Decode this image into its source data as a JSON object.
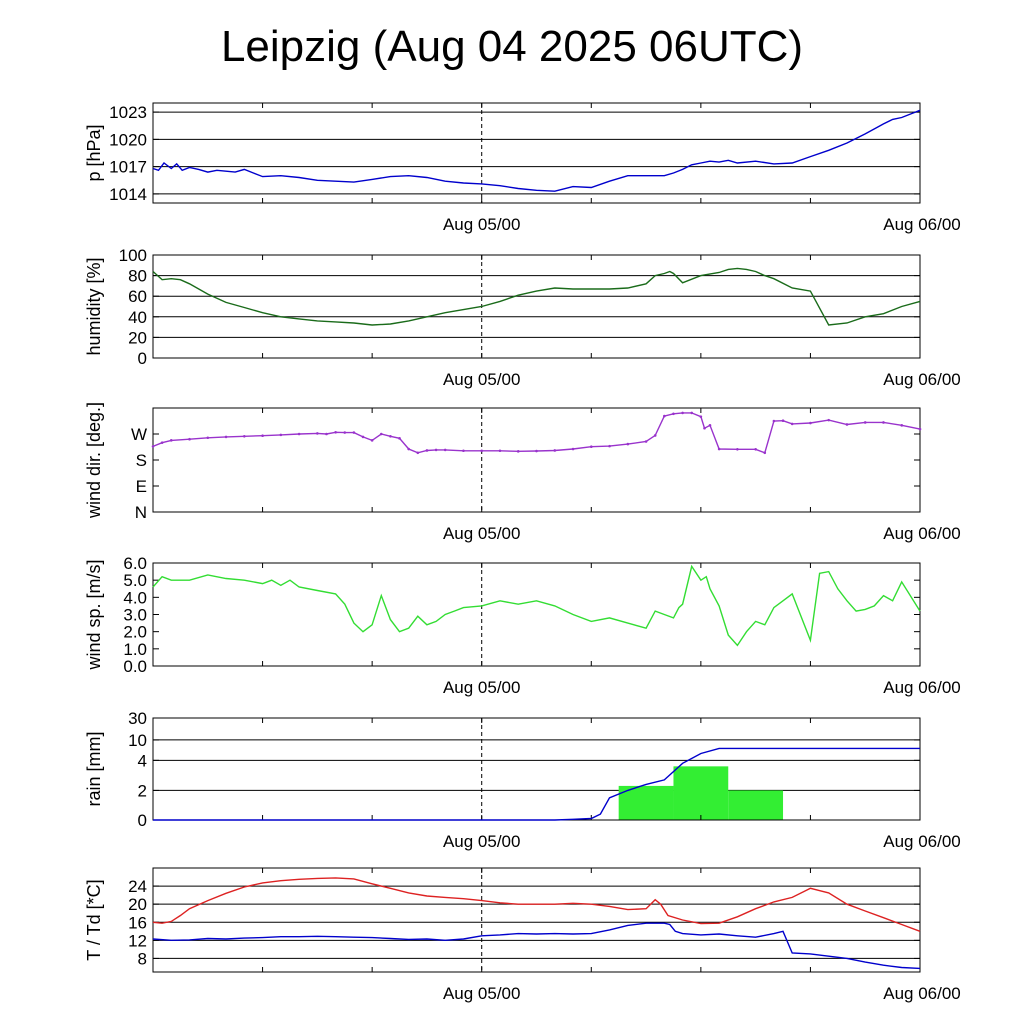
{
  "title": "Leipzig (Aug 04 2025 06UTC)",
  "x_tick_labels": [
    "Aug 05/00",
    "Aug 06/00"
  ],
  "chart_data": [
    {
      "type": "line",
      "id": "pressure",
      "ylabel": "p [hPa]",
      "x_unit": "hours since Aug 04 2025 06UTC",
      "xlim": [
        0,
        42
      ],
      "ylim": [
        1013,
        1024
      ],
      "yticks": [
        1014,
        1017,
        1020,
        1023
      ],
      "ytick_labels": [
        "1014",
        "1017",
        "1020",
        "1023"
      ],
      "grid": true,
      "color": "#0000cc",
      "series": [
        {
          "x": [
            0,
            0.3,
            0.6,
            1.0,
            1.3,
            1.6,
            2.0,
            2.5,
            3,
            3.5,
            4,
            4.5,
            5,
            5.5,
            6,
            7,
            8,
            9,
            10,
            11,
            12,
            13,
            14,
            15,
            16,
            17,
            18,
            19,
            20,
            21,
            22,
            23,
            24,
            25,
            26,
            27,
            28,
            28.5,
            29,
            29.5,
            30,
            30.5,
            31,
            31.5,
            32,
            33,
            34,
            35,
            36,
            37,
            38,
            39,
            40,
            40.5,
            41,
            41.5,
            42
          ],
          "y": [
            1016.8,
            1016.6,
            1017.4,
            1016.8,
            1017.3,
            1016.6,
            1016.9,
            1016.7,
            1016.4,
            1016.6,
            1016.5,
            1016.4,
            1016.7,
            1016.3,
            1015.9,
            1016.0,
            1015.8,
            1015.5,
            1015.4,
            1015.3,
            1015.6,
            1015.9,
            1016.0,
            1015.8,
            1015.4,
            1015.2,
            1015.1,
            1014.9,
            1014.6,
            1014.4,
            1014.3,
            1014.8,
            1014.7,
            1015.4,
            1016.0,
            1016.0,
            1016.0,
            1016.3,
            1016.7,
            1017.2,
            1017.4,
            1017.6,
            1017.5,
            1017.7,
            1017.4,
            1017.6,
            1017.3,
            1017.4,
            1018.1,
            1018.8,
            1019.6,
            1020.6,
            1021.7,
            1022.2,
            1022.4,
            1022.8,
            1023.2
          ]
        }
      ]
    },
    {
      "type": "line",
      "id": "humidity",
      "ylabel": "humidity [%]",
      "x_unit": "hours since Aug 04 2025 06UTC",
      "xlim": [
        0,
        42
      ],
      "ylim": [
        0,
        100
      ],
      "yticks": [
        0,
        20,
        40,
        60,
        80,
        100
      ],
      "ytick_labels": [
        "0",
        "20",
        "40",
        "60",
        "80",
        "100"
      ],
      "grid": true,
      "color": "#1a6b1a",
      "series": [
        {
          "x": [
            0,
            0.5,
            1,
            1.5,
            2,
            3,
            4,
            5,
            6,
            7,
            8,
            9,
            10,
            11,
            12,
            13,
            14,
            15,
            16,
            17,
            18,
            19,
            20,
            21,
            22,
            23,
            24,
            25,
            26,
            27,
            27.5,
            28,
            28.3,
            28.5,
            29,
            30,
            31,
            31.5,
            32,
            32.5,
            33,
            33.5,
            34,
            35,
            36,
            37,
            38,
            39,
            40,
            41,
            42
          ],
          "y": [
            84,
            76,
            77,
            76,
            72,
            62,
            54,
            49,
            44,
            40,
            38,
            36,
            35,
            34,
            32,
            33,
            36,
            40,
            44,
            47,
            50,
            55,
            61,
            65,
            68,
            67,
            67,
            67,
            68,
            72,
            80,
            82,
            84,
            82,
            73,
            80,
            83,
            86,
            87,
            86,
            84,
            80,
            77,
            68,
            65,
            32,
            34,
            40,
            43,
            50,
            55
          ]
        }
      ]
    },
    {
      "type": "scatter",
      "id": "wind_direction",
      "ylabel": "wind dir. [deg.]",
      "x_unit": "hours since Aug 04 2025 06UTC",
      "xlim": [
        0,
        42
      ],
      "ylim": [
        0,
        360
      ],
      "yticks": [
        0,
        90,
        180,
        270
      ],
      "ytick_labels": [
        "N",
        "E",
        "S",
        "W"
      ],
      "grid": false,
      "color": "#9933cc",
      "series": [
        {
          "x": [
            0,
            0.5,
            1,
            2,
            3,
            4,
            5,
            6,
            7,
            8,
            9,
            9.5,
            10,
            10.5,
            11,
            11.5,
            12,
            12.5,
            13,
            13.5,
            14,
            14.5,
            15,
            15.5,
            16,
            17,
            18,
            19,
            20,
            21,
            22,
            23,
            24,
            25,
            26,
            27,
            27.5,
            28,
            28.5,
            29,
            29.5,
            30,
            30.2,
            30.5,
            31,
            32,
            33,
            33.5,
            34,
            34.5,
            35,
            36,
            37,
            38,
            39,
            40,
            41,
            42
          ],
          "y": [
            227,
            240,
            248,
            252,
            257,
            260,
            262,
            264,
            267,
            270,
            272,
            270,
            276,
            275,
            275,
            260,
            248,
            270,
            262,
            255,
            218,
            205,
            213,
            215,
            215,
            212,
            212,
            212,
            210,
            211,
            213,
            218,
            226,
            228,
            235,
            244,
            265,
            332,
            340,
            343,
            343,
            330,
            290,
            300,
            218,
            217,
            217,
            205,
            315,
            316,
            305,
            308,
            318,
            303,
            310,
            310,
            300,
            287
          ]
        }
      ]
    },
    {
      "type": "line",
      "id": "wind_speed",
      "ylabel": "wind sp. [m/s]",
      "x_unit": "hours since Aug 04 2025 06UTC",
      "xlim": [
        0,
        42
      ],
      "ylim": [
        0,
        6
      ],
      "yticks": [
        0,
        1,
        2,
        3,
        4,
        5,
        6
      ],
      "ytick_labels": [
        "0.0",
        "1.0",
        "2.0",
        "3.0",
        "4.0",
        "5.0",
        "6.0"
      ],
      "grid": false,
      "color": "#33dd33",
      "series": [
        {
          "x": [
            0,
            0.5,
            1,
            2,
            3,
            4,
            5,
            6,
            6.5,
            7,
            7.5,
            8,
            9,
            10,
            10.5,
            11,
            11.5,
            12,
            12.5,
            13,
            13.5,
            14,
            14.5,
            15,
            15.5,
            16,
            16.5,
            17,
            18,
            19,
            20,
            21,
            22,
            23,
            24,
            25,
            26,
            27,
            27.5,
            28,
            28.5,
            28.8,
            29,
            29.5,
            30,
            30.3,
            30.5,
            31,
            31.5,
            32,
            32.5,
            33,
            33.5,
            34,
            34.5,
            35,
            36,
            36.5,
            37,
            37.5,
            38,
            38.5,
            39,
            39.5,
            40,
            40.5,
            41,
            42
          ],
          "y": [
            4.6,
            5.2,
            5.0,
            5.0,
            5.3,
            5.1,
            5.0,
            4.8,
            5.0,
            4.7,
            5.0,
            4.6,
            4.4,
            4.2,
            3.6,
            2.5,
            2.0,
            2.4,
            4.1,
            2.7,
            2.0,
            2.2,
            2.9,
            2.4,
            2.6,
            3.0,
            3.2,
            3.4,
            3.5,
            3.8,
            3.6,
            3.8,
            3.5,
            3.0,
            2.6,
            2.8,
            2.5,
            2.2,
            3.2,
            3.0,
            2.8,
            3.4,
            3.6,
            5.8,
            5.0,
            5.2,
            4.5,
            3.5,
            1.8,
            1.2,
            2.0,
            2.6,
            2.4,
            3.4,
            3.8,
            4.2,
            1.5,
            5.4,
            5.5,
            4.5,
            3.8,
            3.2,
            3.3,
            3.5,
            4.1,
            3.8,
            4.9,
            3.2
          ]
        }
      ]
    },
    {
      "type": "bar",
      "id": "rain",
      "ylabel": "rain [mm]",
      "x_unit": "hours since Aug 04 2025 06UTC",
      "xlim": [
        0,
        42
      ],
      "yscale": "nonlinear",
      "yticks": [
        0,
        2,
        4,
        10,
        30
      ],
      "ytick_labels": [
        "0",
        "2",
        "4",
        "10",
        "30"
      ],
      "grid": true,
      "bar_color": "#33ee33",
      "line_color": "#0000cc",
      "bars": [
        {
          "x0": 25.5,
          "x1": 28.5,
          "value": 2.3
        },
        {
          "x0": 28.5,
          "x1": 31.5,
          "value": 3.6
        },
        {
          "x0": 31.5,
          "x1": 34.5,
          "value": 2.0
        }
      ],
      "series": [
        {
          "name": "accumulated",
          "x": [
            0,
            20,
            22,
            23,
            24,
            24.5,
            25,
            26,
            27,
            28,
            29,
            30,
            31,
            42
          ],
          "y": [
            0,
            0,
            0,
            0.05,
            0.1,
            0.4,
            1.5,
            2.0,
            2.4,
            2.7,
            3.8,
            6.0,
            7.5,
            7.5
          ]
        }
      ]
    },
    {
      "type": "line",
      "id": "temperature",
      "ylabel": "T / Td [*C]",
      "x_unit": "hours since Aug 04 2025 06UTC",
      "xlim": [
        0,
        42
      ],
      "ylim": [
        5,
        28
      ],
      "yticks": [
        8,
        12,
        16,
        20,
        24
      ],
      "ytick_labels": [
        "8",
        "12",
        "16",
        "20",
        "24"
      ],
      "grid": true,
      "series": [
        {
          "color": "#dd2222",
          "x": [
            0,
            0.5,
            1,
            1.5,
            2,
            3,
            4,
            5,
            6,
            7,
            8,
            9,
            10,
            11,
            12,
            13,
            14,
            15,
            16,
            17,
            18,
            19,
            20,
            21,
            22,
            23,
            24,
            25,
            26,
            27,
            27.5,
            27.8,
            28.2,
            29,
            30,
            31,
            32,
            33,
            34,
            35,
            36,
            37,
            38,
            39,
            40,
            41,
            42
          ],
          "y": [
            16.0,
            15.8,
            16.2,
            17.5,
            19.0,
            20.8,
            22.4,
            23.8,
            24.7,
            25.2,
            25.5,
            25.7,
            25.8,
            25.6,
            24.5,
            23.5,
            22.5,
            21.8,
            21.5,
            21.2,
            20.8,
            20.3,
            20.0,
            20.0,
            20.0,
            20.2,
            20.0,
            19.5,
            18.8,
            19.0,
            21.0,
            20.0,
            17.5,
            16.5,
            15.7,
            15.8,
            17.2,
            19.0,
            20.5,
            21.5,
            23.5,
            22.5,
            20.0,
            18.5,
            17.0,
            15.5,
            14.0
          ]
        },
        {
          "color": "#0000cc",
          "x": [
            0,
            1,
            2,
            3,
            4,
            5,
            6,
            7,
            8,
            9,
            10,
            11,
            12,
            13,
            14,
            15,
            16,
            17,
            18,
            19,
            20,
            21,
            22,
            23,
            24,
            25,
            26,
            27,
            28,
            28.3,
            28.6,
            29,
            30,
            31,
            32,
            33,
            34,
            34.5,
            35,
            36,
            37,
            38,
            39,
            40,
            41,
            42
          ],
          "y": [
            12.3,
            12.0,
            12.1,
            12.4,
            12.3,
            12.5,
            12.6,
            12.8,
            12.8,
            12.9,
            12.8,
            12.7,
            12.6,
            12.4,
            12.2,
            12.3,
            12.0,
            12.3,
            13.0,
            13.2,
            13.5,
            13.4,
            13.5,
            13.4,
            13.5,
            14.3,
            15.3,
            15.8,
            15.8,
            15.5,
            14.0,
            13.5,
            13.2,
            13.4,
            13.0,
            12.7,
            13.5,
            14.0,
            9.2,
            9.0,
            8.5,
            8.0,
            7.2,
            6.5,
            6.0,
            5.8
          ]
        }
      ]
    }
  ]
}
